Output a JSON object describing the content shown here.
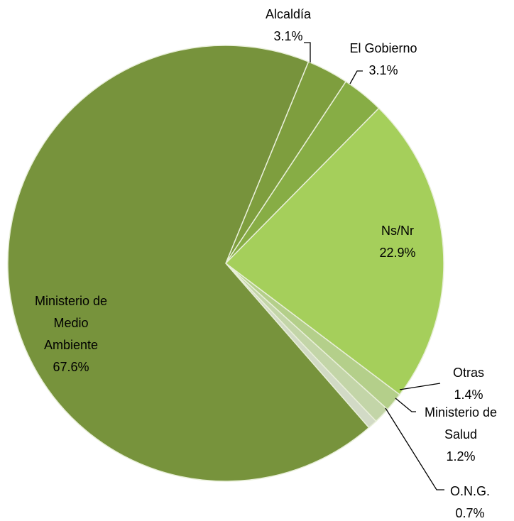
{
  "chart_data": {
    "type": "pie",
    "categories": [
      "Alcaldía",
      "El Gobierno",
      "Ns/Nr",
      "Otras",
      "Ministerio de Salud",
      "O.N.G.",
      "Ministerio de Medio Ambiente"
    ],
    "values": [
      3.1,
      3.1,
      22.9,
      1.4,
      1.2,
      0.7,
      67.6
    ],
    "value_labels": [
      "3.1%",
      "3.1%",
      "22.9%",
      "1.4%",
      "1.2%",
      "0.7%",
      "67.6%"
    ],
    "colors": [
      "#7e9e3e",
      "#87ad45",
      "#a5cf5b",
      "#b4cf8a",
      "#c3d5a8",
      "#d2dac6",
      "#77933c"
    ]
  }
}
